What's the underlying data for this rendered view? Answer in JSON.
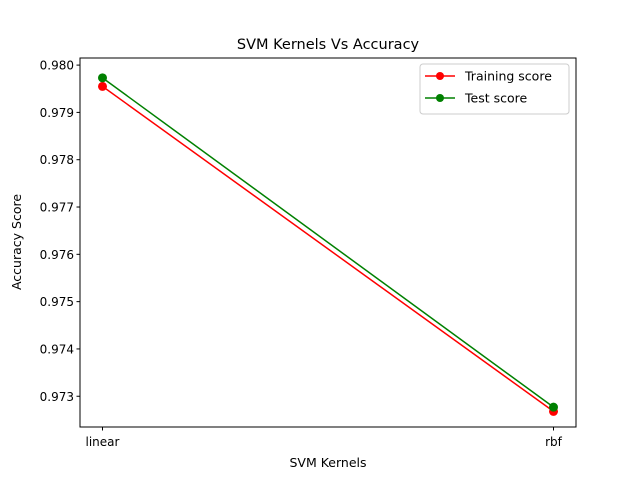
{
  "chart_data": {
    "type": "line",
    "title": "SVM Kernels Vs Accuracy",
    "xlabel": "SVM Kernels",
    "ylabel": "Accuracy Score",
    "categories": [
      "linear",
      "rbf"
    ],
    "ylim": [
      0.97235,
      0.98015
    ],
    "yticks": [
      0.973,
      0.974,
      0.975,
      0.976,
      0.977,
      0.978,
      0.979,
      0.98
    ],
    "ytick_labels": [
      "0.973",
      "0.974",
      "0.975",
      "0.976",
      "0.977",
      "0.978",
      "0.979",
      "0.980"
    ],
    "grid": false,
    "legend_position": "top-right",
    "series": [
      {
        "name": "Training score",
        "values": [
          0.97955,
          0.97268
        ],
        "color": "#ff0000"
      },
      {
        "name": "Test score",
        "values": [
          0.97973,
          0.97277
        ],
        "color": "#008000"
      }
    ]
  }
}
